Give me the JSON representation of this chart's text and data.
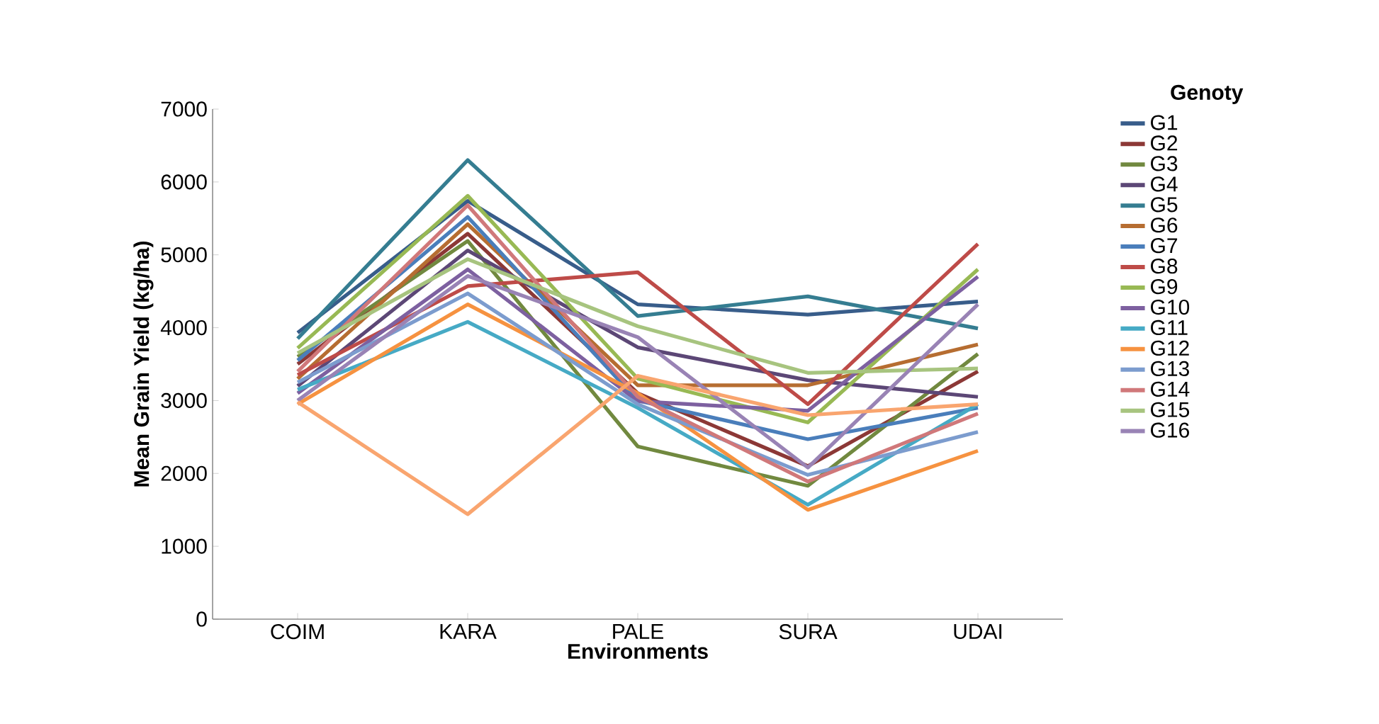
{
  "chart_data": {
    "type": "line",
    "xlabel": "Environments",
    "ylabel": "Mean Grain Yield (kg/ha)",
    "legend_title": "Genoty",
    "legend": "right",
    "grid": false,
    "categories": [
      "COIM",
      "KARA",
      "PALE",
      "SURA",
      "UDAI"
    ],
    "ylim": [
      0,
      7000
    ],
    "yticks": [
      0,
      1000,
      2000,
      3000,
      4000,
      5000,
      6000,
      7000
    ],
    "series": [
      {
        "name": "G1",
        "color": "#385d8a",
        "values": [
          3930,
          5740,
          4320,
          4180,
          4360
        ]
      },
      {
        "name": "G2",
        "color": "#8c3836",
        "values": [
          3500,
          5290,
          3100,
          2100,
          3400
        ]
      },
      {
        "name": "G3",
        "color": "#71893f",
        "values": [
          3600,
          5190,
          2370,
          1830,
          3640
        ]
      },
      {
        "name": "G4",
        "color": "#5c4776",
        "values": [
          3200,
          5060,
          3730,
          3280,
          3050
        ]
      },
      {
        "name": "G5",
        "color": "#357d91",
        "values": [
          3850,
          6300,
          4160,
          4430,
          3990
        ]
      },
      {
        "name": "G6",
        "color": "#b66d31",
        "values": [
          3300,
          5420,
          3210,
          3210,
          3770
        ]
      },
      {
        "name": "G7",
        "color": "#4a7ebb",
        "values": [
          3550,
          5520,
          3000,
          2470,
          2900
        ]
      },
      {
        "name": "G8",
        "color": "#be4b48",
        "values": [
          3350,
          4570,
          4760,
          2950,
          5150
        ]
      },
      {
        "name": "G9",
        "color": "#98b954",
        "values": [
          3720,
          5810,
          3300,
          2700,
          4800
        ]
      },
      {
        "name": "G10",
        "color": "#7d60a0",
        "values": [
          3100,
          4800,
          2990,
          2860,
          4700
        ]
      },
      {
        "name": "G11",
        "color": "#46aac5",
        "values": [
          3150,
          4080,
          2900,
          1570,
          2950
        ]
      },
      {
        "name": "G12",
        "color": "#f69240",
        "values": [
          2950,
          4320,
          3100,
          1500,
          2310
        ]
      },
      {
        "name": "G13",
        "color": "#7c9cce",
        "values": [
          3250,
          4470,
          2950,
          1980,
          2570
        ]
      },
      {
        "name": "G14",
        "color": "#d0787a",
        "values": [
          3400,
          5680,
          3050,
          1890,
          2820
        ]
      },
      {
        "name": "G15",
        "color": "#a7c47f",
        "values": [
          3650,
          4940,
          4020,
          3380,
          3440
        ]
      },
      {
        "name": "G16",
        "color": "#9983b5",
        "values": [
          3000,
          4710,
          3870,
          2080,
          4320
        ]
      },
      {
        "color": "#f9a56f",
        "values": [
          2980,
          1440,
          3340,
          2800,
          2950
        ]
      }
    ]
  }
}
